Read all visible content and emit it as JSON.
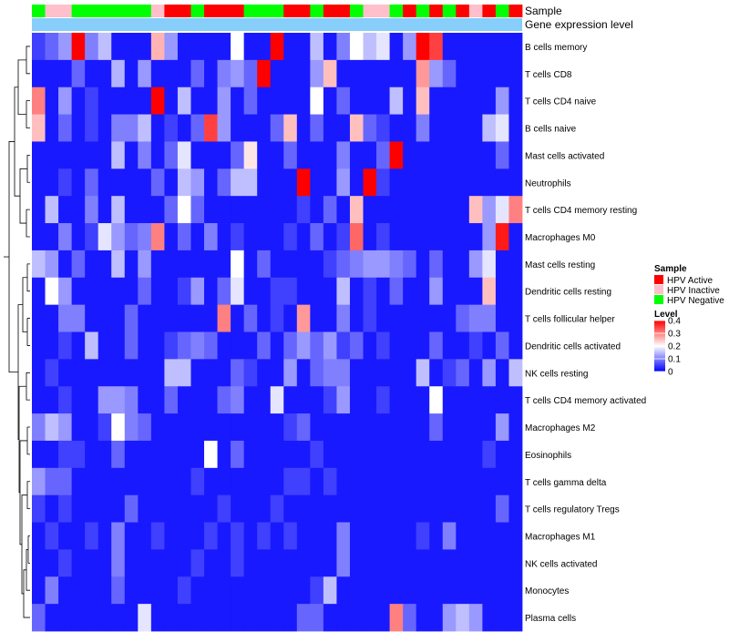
{
  "chart_data": {
    "type": "heatmap",
    "title": "",
    "annotation_tracks": [
      {
        "name": "Sample",
        "key": "sample_group"
      },
      {
        "name": "Gene expression level",
        "key": "expression_level"
      }
    ],
    "rows": [
      "B cells memory",
      "T cells CD8",
      "T cells CD4 naive",
      "B cells naive",
      "Mast cells activated",
      "Neutrophils",
      "T cells CD4 memory resting",
      "Macrophages M0",
      "Mast cells resting",
      "Dendritic cells resting",
      "T cells follicular helper",
      "Dendritic cells activated",
      "NK cells resting",
      "T cells CD4 memory activated",
      "Macrophages M2",
      "Eosinophils",
      "T cells gamma delta",
      "T cells regulatory  Tregs",
      "Macrophages M1",
      "NK cells activated",
      "Monocytes",
      "Plasma cells"
    ],
    "column_sample_groups": [
      "HPV Negative",
      "HPV Inactive",
      "HPV Inactive",
      "HPV Negative",
      "HPV Negative",
      "HPV Negative",
      "HPV Negative",
      "HPV Negative",
      "HPV Negative",
      "HPV Inactive",
      "HPV Active",
      "HPV Active",
      "HPV Negative",
      "HPV Active",
      "HPV Active",
      "HPV Active",
      "HPV Negative",
      "HPV Negative",
      "HPV Negative",
      "HPV Active",
      "HPV Active",
      "HPV Negative",
      "HPV Active",
      "HPV Active",
      "HPV Negative",
      "HPV Inactive",
      "HPV Inactive",
      "HPV Negative",
      "HPV Active",
      "HPV Negative",
      "HPV Active",
      "HPV Negative",
      "HPV Active",
      "HPV Inactive",
      "HPV Active",
      "HPV Negative",
      "HPV Active"
    ],
    "values": [
      [
        0.05,
        0.08,
        0.12,
        0.4,
        0.1,
        0.15,
        0.02,
        0.02,
        0.02,
        0.26,
        0.12,
        0.02,
        0.02,
        0.02,
        0.02,
        0.2,
        0.02,
        0.02,
        0.4,
        0.02,
        0.02,
        0.15,
        0.02,
        0.1,
        0.2,
        0.15,
        0.18,
        0.02,
        0.12,
        0.4,
        0.35,
        0.02,
        0.02,
        0.02,
        0.02,
        0.02,
        0.02
      ],
      [
        0.02,
        0.02,
        0.02,
        0.08,
        0.02,
        0.02,
        0.14,
        0.02,
        0.12,
        0.02,
        0.02,
        0.02,
        0.08,
        0.02,
        0.1,
        0.12,
        0.08,
        0.4,
        0.02,
        0.02,
        0.02,
        0.12,
        0.25,
        0.02,
        0.02,
        0.02,
        0.02,
        0.02,
        0.02,
        0.28,
        0.12,
        0.08,
        0.02,
        0.02,
        0.02,
        0.02,
        0.02
      ],
      [
        0.3,
        0.02,
        0.12,
        0.02,
        0.05,
        0.02,
        0.02,
        0.02,
        0.02,
        0.4,
        0.02,
        0.15,
        0.02,
        0.02,
        0.12,
        0.02,
        0.08,
        0.02,
        0.02,
        0.02,
        0.02,
        0.2,
        0.02,
        0.08,
        0.02,
        0.02,
        0.02,
        0.15,
        0.02,
        0.25,
        0.02,
        0.02,
        0.02,
        0.02,
        0.02,
        0.12,
        0.02
      ],
      [
        0.25,
        0.02,
        0.08,
        0.02,
        0.05,
        0.02,
        0.1,
        0.1,
        0.15,
        0.02,
        0.05,
        0.02,
        0.08,
        0.35,
        0.12,
        0.02,
        0.02,
        0.02,
        0.08,
        0.25,
        0.02,
        0.08,
        0.02,
        0.02,
        0.25,
        0.08,
        0.05,
        0.02,
        0.02,
        0.1,
        0.02,
        0.02,
        0.02,
        0.02,
        0.15,
        0.18,
        0.02
      ],
      [
        0.02,
        0.02,
        0.02,
        0.02,
        0.02,
        0.02,
        0.15,
        0.02,
        0.1,
        0.02,
        0.08,
        0.18,
        0.02,
        0.02,
        0.02,
        0.08,
        0.22,
        0.02,
        0.02,
        0.08,
        0.02,
        0.02,
        0.02,
        0.1,
        0.02,
        0.02,
        0.08,
        0.4,
        0.02,
        0.02,
        0.02,
        0.02,
        0.02,
        0.02,
        0.02,
        0.08,
        0.02
      ],
      [
        0.02,
        0.02,
        0.05,
        0.02,
        0.08,
        0.02,
        0.02,
        0.02,
        0.02,
        0.08,
        0.02,
        0.15,
        0.12,
        0.02,
        0.08,
        0.15,
        0.15,
        0.02,
        0.02,
        0.02,
        0.4,
        0.02,
        0.02,
        0.12,
        0.02,
        0.4,
        0.05,
        0.02,
        0.02,
        0.02,
        0.02,
        0.02,
        0.02,
        0.02,
        0.02,
        0.02,
        0.02
      ],
      [
        0.02,
        0.15,
        0.02,
        0.02,
        0.1,
        0.02,
        0.15,
        0.02,
        0.02,
        0.02,
        0.08,
        0.2,
        0.08,
        0.02,
        0.02,
        0.02,
        0.02,
        0.02,
        0.02,
        0.02,
        0.05,
        0.02,
        0.08,
        0.02,
        0.25,
        0.02,
        0.02,
        0.02,
        0.02,
        0.02,
        0.02,
        0.02,
        0.02,
        0.25,
        0.12,
        0.18,
        0.3
      ],
      [
        0.02,
        0.02,
        0.1,
        0.02,
        0.05,
        0.18,
        0.12,
        0.08,
        0.1,
        0.3,
        0.02,
        0.08,
        0.02,
        0.1,
        0.02,
        0.05,
        0.02,
        0.02,
        0.02,
        0.05,
        0.02,
        0.08,
        0.02,
        0.05,
        0.32,
        0.02,
        0.05,
        0.02,
        0.02,
        0.02,
        0.02,
        0.02,
        0.02,
        0.02,
        0.12,
        0.38,
        0.02
      ],
      [
        0.15,
        0.12,
        0.02,
        0.08,
        0.02,
        0.02,
        0.15,
        0.02,
        0.12,
        0.02,
        0.02,
        0.02,
        0.02,
        0.02,
        0.02,
        0.2,
        0.02,
        0.08,
        0.02,
        0.02,
        0.02,
        0.02,
        0.05,
        0.08,
        0.1,
        0.12,
        0.12,
        0.1,
        0.08,
        0.02,
        0.08,
        0.02,
        0.02,
        0.12,
        0.18,
        0.02,
        0.02
      ],
      [
        0.02,
        0.2,
        0.12,
        0.02,
        0.02,
        0.02,
        0.02,
        0.02,
        0.08,
        0.02,
        0.02,
        0.05,
        0.12,
        0.02,
        0.08,
        0.18,
        0.02,
        0.02,
        0.05,
        0.05,
        0.02,
        0.02,
        0.02,
        0.15,
        0.02,
        0.05,
        0.02,
        0.08,
        0.02,
        0.02,
        0.12,
        0.02,
        0.02,
        0.02,
        0.25,
        0.02,
        0.02
      ],
      [
        0.02,
        0.02,
        0.1,
        0.1,
        0.02,
        0.02,
        0.02,
        0.08,
        0.02,
        0.02,
        0.02,
        0.02,
        0.02,
        0.02,
        0.3,
        0.02,
        0.08,
        0.02,
        0.05,
        0.02,
        0.28,
        0.02,
        0.02,
        0.1,
        0.02,
        0.05,
        0.02,
        0.02,
        0.02,
        0.02,
        0.02,
        0.02,
        0.08,
        0.1,
        0.1,
        0.02,
        0.02
      ],
      [
        0.02,
        0.02,
        0.05,
        0.02,
        0.15,
        0.02,
        0.02,
        0.08,
        0.02,
        0.02,
        0.05,
        0.08,
        0.1,
        0.08,
        0.02,
        0.02,
        0.02,
        0.08,
        0.02,
        0.08,
        0.12,
        0.08,
        0.12,
        0.05,
        0.08,
        0.02,
        0.05,
        0.02,
        0.02,
        0.02,
        0.08,
        0.02,
        0.02,
        0.05,
        0.02,
        0.08,
        0.02
      ],
      [
        0.02,
        0.05,
        0.02,
        0.02,
        0.02,
        0.02,
        0.02,
        0.02,
        0.02,
        0.02,
        0.15,
        0.15,
        0.02,
        0.02,
        0.02,
        0.08,
        0.05,
        0.02,
        0.02,
        0.12,
        0.02,
        0.08,
        0.1,
        0.1,
        0.02,
        0.02,
        0.02,
        0.02,
        0.02,
        0.15,
        0.02,
        0.05,
        0.08,
        0.02,
        0.12,
        0.02,
        0.15
      ],
      [
        0.02,
        0.02,
        0.05,
        0.02,
        0.02,
        0.12,
        0.12,
        0.1,
        0.02,
        0.02,
        0.08,
        0.02,
        0.02,
        0.02,
        0.08,
        0.1,
        0.02,
        0.02,
        0.18,
        0.02,
        0.02,
        0.02,
        0.05,
        0.12,
        0.02,
        0.02,
        0.05,
        0.02,
        0.02,
        0.02,
        0.2,
        0.02,
        0.02,
        0.02,
        0.02,
        0.02,
        0.02
      ],
      [
        0.1,
        0.15,
        0.12,
        0.02,
        0.02,
        0.05,
        0.2,
        0.1,
        0.08,
        0.02,
        0.02,
        0.02,
        0.02,
        0.02,
        0.02,
        0.02,
        0.02,
        0.02,
        0.02,
        0.05,
        0.08,
        0.02,
        0.02,
        0.02,
        0.02,
        0.02,
        0.02,
        0.02,
        0.02,
        0.02,
        0.08,
        0.02,
        0.02,
        0.02,
        0.02,
        0.12,
        0.02
      ],
      [
        0.02,
        0.02,
        0.05,
        0.05,
        0.02,
        0.02,
        0.08,
        0.02,
        0.02,
        0.02,
        0.02,
        0.02,
        0.02,
        0.2,
        0.02,
        0.08,
        0.02,
        0.02,
        0.02,
        0.02,
        0.02,
        0.05,
        0.02,
        0.02,
        0.02,
        0.02,
        0.02,
        0.02,
        0.02,
        0.02,
        0.02,
        0.02,
        0.02,
        0.02,
        0.05,
        0.02,
        0.02
      ],
      [
        0.12,
        0.08,
        0.08,
        0.02,
        0.02,
        0.02,
        0.02,
        0.02,
        0.02,
        0.02,
        0.02,
        0.02,
        0.05,
        0.02,
        0.02,
        0.02,
        0.02,
        0.02,
        0.02,
        0.05,
        0.05,
        0.02,
        0.05,
        0.02,
        0.02,
        0.02,
        0.02,
        0.02,
        0.02,
        0.02,
        0.02,
        0.02,
        0.02,
        0.02,
        0.02,
        0.02,
        0.02
      ],
      [
        0.05,
        0.02,
        0.05,
        0.02,
        0.02,
        0.02,
        0.02,
        0.08,
        0.02,
        0.02,
        0.02,
        0.02,
        0.02,
        0.02,
        0.05,
        0.02,
        0.02,
        0.02,
        0.05,
        0.02,
        0.02,
        0.02,
        0.02,
        0.02,
        0.02,
        0.02,
        0.02,
        0.02,
        0.02,
        0.02,
        0.02,
        0.02,
        0.02,
        0.02,
        0.02,
        0.08,
        0.02
      ],
      [
        0.02,
        0.05,
        0.02,
        0.02,
        0.05,
        0.02,
        0.1,
        0.02,
        0.02,
        0.05,
        0.02,
        0.02,
        0.02,
        0.05,
        0.02,
        0.05,
        0.02,
        0.05,
        0.02,
        0.05,
        0.02,
        0.02,
        0.02,
        0.1,
        0.02,
        0.02,
        0.02,
        0.02,
        0.02,
        0.05,
        0.02,
        0.1,
        0.02,
        0.02,
        0.02,
        0.02,
        0.02
      ],
      [
        0.02,
        0.02,
        0.05,
        0.02,
        0.02,
        0.02,
        0.1,
        0.02,
        0.02,
        0.02,
        0.02,
        0.02,
        0.05,
        0.02,
        0.02,
        0.05,
        0.02,
        0.02,
        0.02,
        0.02,
        0.02,
        0.02,
        0.02,
        0.1,
        0.02,
        0.02,
        0.02,
        0.02,
        0.02,
        0.02,
        0.02,
        0.02,
        0.02,
        0.02,
        0.02,
        0.02,
        0.02
      ],
      [
        0.02,
        0.1,
        0.02,
        0.02,
        0.02,
        0.02,
        0.08,
        0.02,
        0.02,
        0.02,
        0.02,
        0.05,
        0.02,
        0.02,
        0.02,
        0.02,
        0.02,
        0.02,
        0.02,
        0.02,
        0.02,
        0.05,
        0.15,
        0.02,
        0.02,
        0.02,
        0.02,
        0.02,
        0.02,
        0.02,
        0.02,
        0.02,
        0.02,
        0.02,
        0.02,
        0.02,
        0.02
      ],
      [
        0.08,
        0.02,
        0.02,
        0.02,
        0.02,
        0.02,
        0.02,
        0.02,
        0.18,
        0.02,
        0.02,
        0.02,
        0.02,
        0.02,
        0.02,
        0.02,
        0.02,
        0.02,
        0.02,
        0.02,
        0.08,
        0.08,
        0.02,
        0.02,
        0.02,
        0.02,
        0.02,
        0.3,
        0.08,
        0.02,
        0.02,
        0.12,
        0.15,
        0.12,
        0.02,
        0.02,
        0.02
      ]
    ],
    "legend": {
      "sample": {
        "title": "Sample",
        "entries": [
          {
            "label": "HPV Active",
            "color": "#ff0000"
          },
          {
            "label": "HPV Inactive",
            "color": "#ffc0cb"
          },
          {
            "label": "HPV Negative",
            "color": "#00ff00"
          }
        ]
      },
      "level": {
        "title": "Level",
        "ticks": [
          "0.4",
          "0.3",
          "0.2",
          "0.1",
          "0"
        ],
        "tick_values": [
          0.4,
          0.3,
          0.2,
          0.1,
          0
        ],
        "range": [
          0,
          0.4
        ]
      }
    },
    "colors": {
      "low": "#0000ff",
      "mid": "#ffffff",
      "high": "#ff0000",
      "expression_track": "#87cefa",
      "dendrogram": "#000000"
    },
    "grid": false,
    "legend_placement": "right"
  }
}
